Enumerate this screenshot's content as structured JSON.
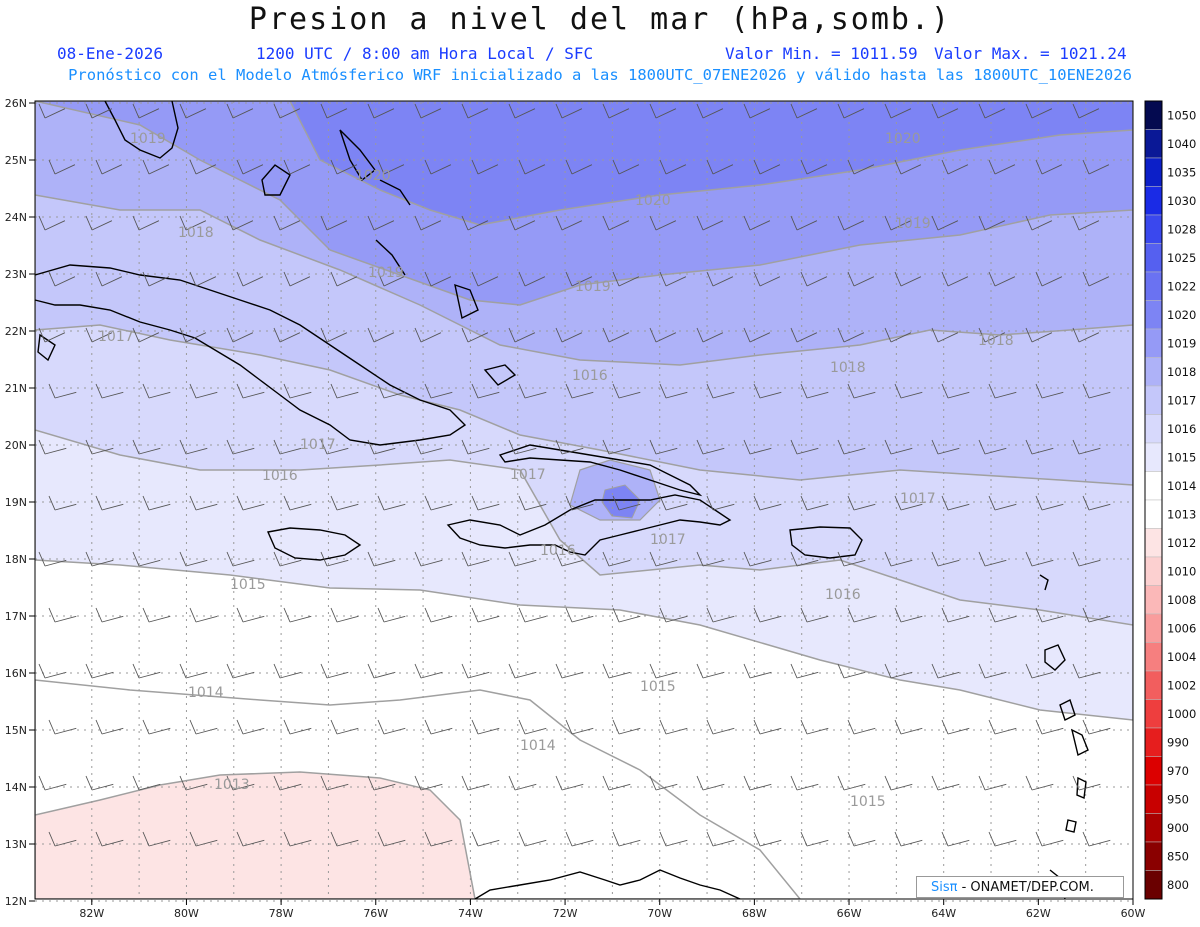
{
  "header": {
    "title": "Presion a nivel del mar (hPa,somb.)",
    "date": "08-Ene-2026",
    "time_info": "1200 UTC / 8:00 am Hora Local / SFC",
    "min_value": "Valor Min. = 1011.59",
    "max_value": "Valor Max. = 1021.24",
    "model_info": "Pronóstico con el Modelo Atmósferico WRF inicializado a las 1800UTC_07ENE2026 y válido hasta las  1800UTC_10ENE2026"
  },
  "map": {
    "lat_labels": [
      "26N",
      "25N",
      "24N",
      "23N",
      "22N",
      "21N",
      "20N",
      "19N",
      "18N",
      "17N",
      "16N",
      "15N",
      "14N",
      "13N",
      "12N"
    ],
    "lon_labels": [
      "82W",
      "80W",
      "78W",
      "76W",
      "74W",
      "72W",
      "70W",
      "68W",
      "66W",
      "64W",
      "62W",
      "60W"
    ],
    "contour_labels": [
      {
        "text": "1019"
      },
      {
        "text": "1020"
      },
      {
        "text": "1020"
      },
      {
        "text": "1020"
      },
      {
        "text": "1018"
      },
      {
        "text": "1019"
      },
      {
        "text": "1019"
      },
      {
        "text": "1019"
      },
      {
        "text": "1017"
      },
      {
        "text": "1016"
      },
      {
        "text": "1018"
      },
      {
        "text": "1018"
      },
      {
        "text": "1017"
      },
      {
        "text": "1016"
      },
      {
        "text": "1017"
      },
      {
        "text": "1017"
      },
      {
        "text": "1016"
      },
      {
        "text": "1017"
      },
      {
        "text": "1015"
      },
      {
        "text": "1016"
      },
      {
        "text": "1014"
      },
      {
        "text": "1015"
      },
      {
        "text": "1014"
      },
      {
        "text": "1013"
      },
      {
        "text": "1015"
      }
    ]
  },
  "colorbar": {
    "levels": [
      "1050",
      "1040",
      "1035",
      "1030",
      "1028",
      "1025",
      "1022",
      "1020",
      "1019",
      "1018",
      "1017",
      "1016",
      "1015",
      "1014",
      "1013",
      "1012",
      "1010",
      "1008",
      "1006",
      "1004",
      "1002",
      "1000",
      "990",
      "970",
      "950",
      "900",
      "850",
      "800"
    ],
    "colors": [
      "#040a50",
      "#0a1896",
      "#0c1fc8",
      "#1a2be6",
      "#3a48ee",
      "#5560f0",
      "#6a72f2",
      "#7d84f4",
      "#959af6",
      "#aeb2f8",
      "#c4c7fa",
      "#d7d9fc",
      "#e7e8fd",
      "#ffffff",
      "#ffffff",
      "#fde4e4",
      "#fcd0d0",
      "#fbb8b8",
      "#f99d9d",
      "#f67f7f",
      "#f25e5e",
      "#ee3e3e",
      "#e61e1e",
      "#dc0000",
      "#c80000",
      "#aa0000",
      "#8a0000",
      "#6a0000"
    ]
  },
  "credit": {
    "brand": "Sisπ",
    "text": " - ONAMET/DEP.COM."
  }
}
